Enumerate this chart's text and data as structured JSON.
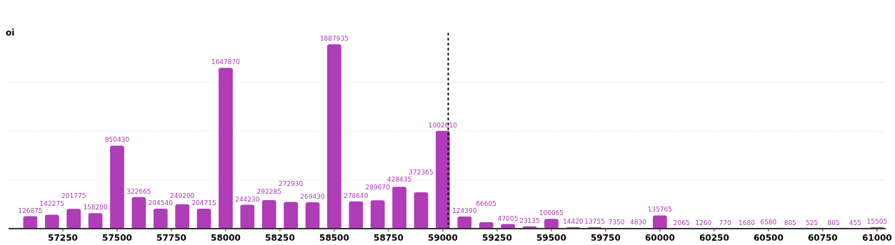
{
  "chart_data": {
    "type": "bar",
    "ylabel": "oi",
    "x": [
      57100,
      57200,
      57300,
      57400,
      57500,
      57600,
      57700,
      57800,
      57900,
      58000,
      58100,
      58200,
      58300,
      58400,
      58500,
      58600,
      58700,
      58800,
      58900,
      59000,
      59100,
      59200,
      59300,
      59400,
      59500,
      59600,
      59700,
      59800,
      59900,
      60000,
      60100,
      60200,
      60300,
      60400,
      60500,
      60600,
      60700,
      60800,
      60900,
      61000
    ],
    "values": [
      126875,
      142275,
      201775,
      158200,
      850430,
      322665,
      204540,
      249200,
      204715,
      1647870,
      244230,
      292285,
      272930,
      269430,
      1887935,
      278640,
      289670,
      428435,
      372365,
      1002610,
      124390,
      66605,
      47005,
      23135,
      100065,
      14420,
      13755,
      7350,
      4830,
      135765,
      2065,
      1260,
      770,
      1680,
      6580,
      805,
      525,
      805,
      455,
      15505
    ],
    "color": "#b03cb8",
    "data_labels": true,
    "xlim": [
      57000,
      61040
    ],
    "xticks": [
      57250,
      57500,
      57750,
      58000,
      58250,
      58500,
      58750,
      59000,
      59250,
      59500,
      59750,
      60000,
      60250,
      60500,
      60750,
      61000
    ],
    "ylim": [
      0,
      2000000
    ],
    "yticks": [
      {
        "value": 0,
        "label": null
      },
      {
        "value": 500000,
        "label": null
      },
      {
        "value": 1000000,
        "label": null
      },
      {
        "value": 1500000,
        "label": null
      }
    ],
    "tick_labels": "x",
    "grid": "y",
    "ref_lines": [
      {
        "axis": "x",
        "value": 59025,
        "line_style": "dotted",
        "color": "#000000"
      }
    ]
  }
}
